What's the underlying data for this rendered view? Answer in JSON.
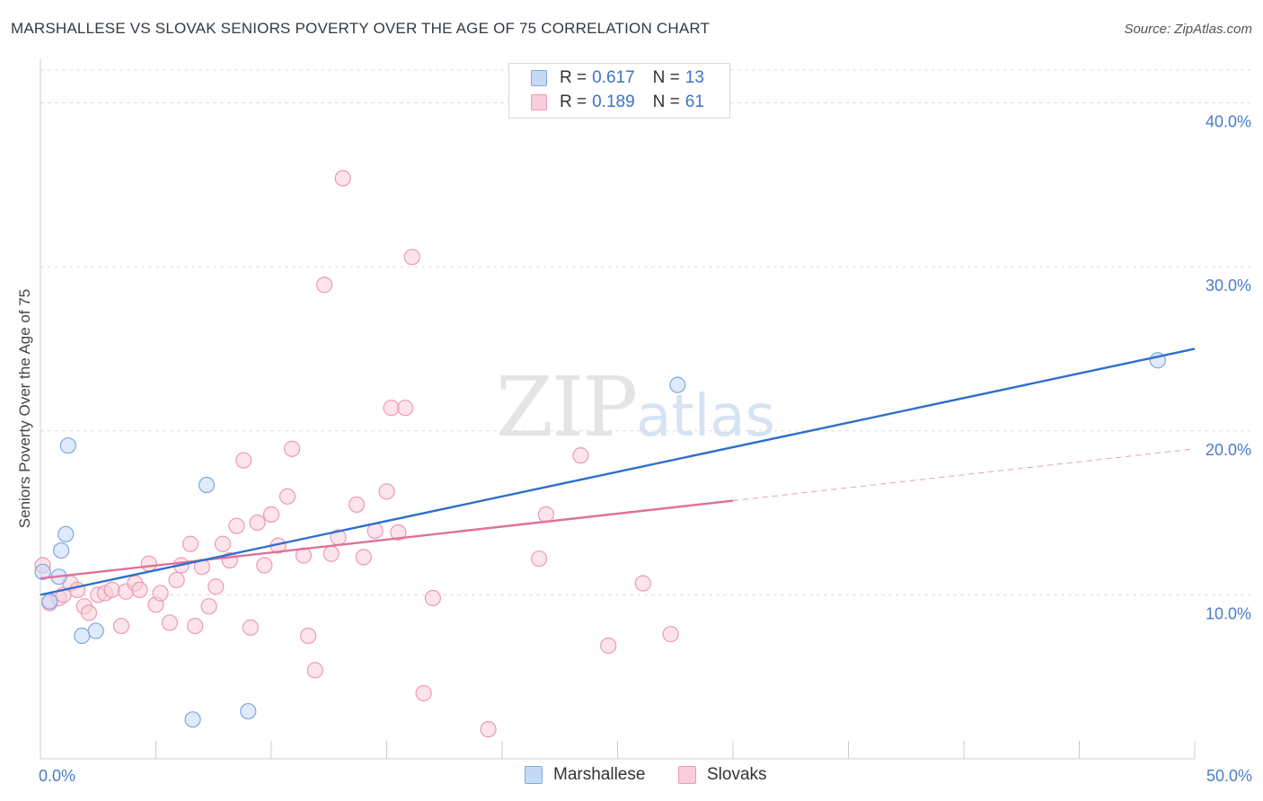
{
  "header": {
    "title": "MARSHALLESE VS SLOVAK SENIORS POVERTY OVER THE AGE OF 75 CORRELATION CHART",
    "source": "Source: ZipAtlas.com"
  },
  "watermark": {
    "zip": "ZIP",
    "atlas": "atlas"
  },
  "legend": {
    "rows": [
      {
        "r_label": "R =",
        "r_value": "0.617",
        "n_label": "N =",
        "n_value": "13"
      },
      {
        "r_label": "R =",
        "r_value": "0.189",
        "n_label": "N =",
        "n_value": "61"
      }
    ]
  },
  "bottom_legend": {
    "marshallese": "Marshallese",
    "slovaks": "Slovaks"
  },
  "colors": {
    "marshallese_fill": "#c5d9f5",
    "marshallese_stroke": "#7ea8de",
    "marshallese_line": "#2f6fcb",
    "slovaks_fill": "#f9cdd9",
    "slovaks_stroke": "#ec9ab4",
    "slovaks_line": "#e0709a",
    "tick_text": "#4a7cc9",
    "grid": "#dddddd"
  },
  "chart_data": {
    "type": "scatter",
    "title": "MARSHALLESE VS SLOVAK SENIORS POVERTY OVER THE AGE OF 75 CORRELATION CHART",
    "xlabel": "",
    "ylabel": "Seniors Poverty Over the Age of 75",
    "xlim": [
      0,
      50
    ],
    "ylim": [
      0,
      42
    ],
    "x_tick_labels": [
      "0.0%",
      "50.0%"
    ],
    "y_ticks": [
      10,
      20,
      30,
      40
    ],
    "y_tick_labels": [
      "10.0%",
      "20.0%",
      "30.0%",
      "40.0%"
    ],
    "series": [
      {
        "name": "Marshallese",
        "r": 0.617,
        "n": 13,
        "points": [
          [
            0.1,
            11.4
          ],
          [
            0.4,
            9.6
          ],
          [
            0.8,
            11.1
          ],
          [
            0.9,
            12.7
          ],
          [
            1.1,
            13.7
          ],
          [
            1.2,
            19.1
          ],
          [
            1.8,
            7.5
          ],
          [
            2.4,
            7.8
          ],
          [
            6.6,
            2.4
          ],
          [
            7.2,
            16.7
          ],
          [
            9.0,
            2.9
          ],
          [
            27.6,
            22.8
          ],
          [
            48.4,
            24.3
          ]
        ],
        "trend": {
          "x0": 0,
          "y0": 10.0,
          "x1": 50,
          "y1": 25.0,
          "solid_to": 50
        }
      },
      {
        "name": "Slovaks",
        "r": 0.189,
        "n": 61,
        "points": [
          [
            0.1,
            11.8
          ],
          [
            0.4,
            9.5
          ],
          [
            0.8,
            9.8
          ],
          [
            1.0,
            10.0
          ],
          [
            1.3,
            10.7
          ],
          [
            1.6,
            10.3
          ],
          [
            1.9,
            9.3
          ],
          [
            2.1,
            8.9
          ],
          [
            2.5,
            10.0
          ],
          [
            2.8,
            10.1
          ],
          [
            3.1,
            10.3
          ],
          [
            3.5,
            8.1
          ],
          [
            3.7,
            10.2
          ],
          [
            4.1,
            10.7
          ],
          [
            4.3,
            10.3
          ],
          [
            4.7,
            11.9
          ],
          [
            5.0,
            9.4
          ],
          [
            5.2,
            10.1
          ],
          [
            5.6,
            8.3
          ],
          [
            5.9,
            10.9
          ],
          [
            6.1,
            11.8
          ],
          [
            6.5,
            13.1
          ],
          [
            6.7,
            8.1
          ],
          [
            7.0,
            11.7
          ],
          [
            7.3,
            9.3
          ],
          [
            7.6,
            10.5
          ],
          [
            7.9,
            13.1
          ],
          [
            8.2,
            12.1
          ],
          [
            8.5,
            14.2
          ],
          [
            8.8,
            18.2
          ],
          [
            9.1,
            8.0
          ],
          [
            9.4,
            14.4
          ],
          [
            9.7,
            11.8
          ],
          [
            10.0,
            14.9
          ],
          [
            10.3,
            13.0
          ],
          [
            10.7,
            16.0
          ],
          [
            10.9,
            18.9
          ],
          [
            11.4,
            12.4
          ],
          [
            11.6,
            7.5
          ],
          [
            11.9,
            5.4
          ],
          [
            12.3,
            28.9
          ],
          [
            12.6,
            12.5
          ],
          [
            12.9,
            13.5
          ],
          [
            13.1,
            35.4
          ],
          [
            13.7,
            15.5
          ],
          [
            14.0,
            12.3
          ],
          [
            14.5,
            13.9
          ],
          [
            15.0,
            16.3
          ],
          [
            15.2,
            21.4
          ],
          [
            15.5,
            13.8
          ],
          [
            15.8,
            21.4
          ],
          [
            16.1,
            30.6
          ],
          [
            16.6,
            4.0
          ],
          [
            17.0,
            9.8
          ],
          [
            19.4,
            1.8
          ],
          [
            21.6,
            12.2
          ],
          [
            21.9,
            14.9
          ],
          [
            23.4,
            18.5
          ],
          [
            24.6,
            6.9
          ],
          [
            26.1,
            10.7
          ],
          [
            27.3,
            7.6
          ]
        ],
        "trend": {
          "x0": 0,
          "y0": 11.0,
          "x1": 50,
          "y1": 18.9,
          "solid_to": 30
        }
      }
    ]
  }
}
